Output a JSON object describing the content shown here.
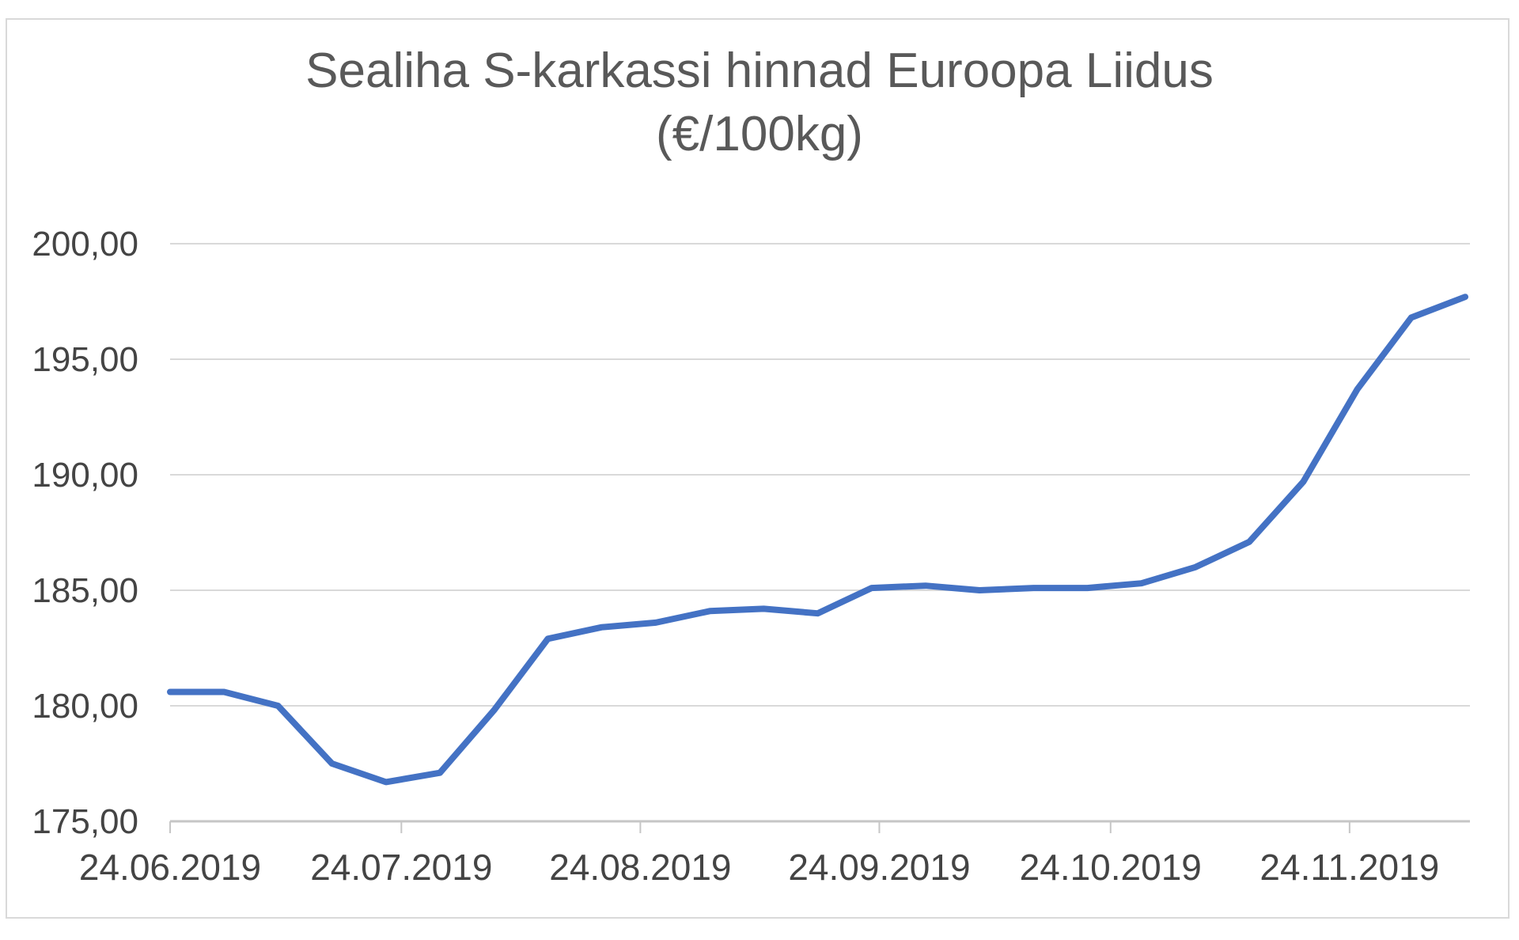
{
  "chart_data": {
    "type": "line",
    "title": "Sealiha S-karkassi hinnad Euroopa Liidus (€/100kg)",
    "title_line1": "Sealiha S-karkassi hinnad Euroopa Liidus",
    "title_line2": "(€/100kg)",
    "xlabel": "",
    "ylabel": "",
    "legend": "none",
    "grid": true,
    "ylim": [
      175,
      200
    ],
    "x_axis_span_days": 168,
    "x": [
      "24.06.2019",
      "01.07.2019",
      "08.07.2019",
      "15.07.2019",
      "22.07.2019",
      "29.07.2019",
      "05.08.2019",
      "12.08.2019",
      "19.08.2019",
      "26.08.2019",
      "02.09.2019",
      "09.09.2019",
      "16.09.2019",
      "23.09.2019",
      "30.09.2019",
      "07.10.2019",
      "14.10.2019",
      "21.10.2019",
      "28.10.2019",
      "04.11.2019",
      "11.11.2019",
      "18.11.2019",
      "25.11.2019",
      "02.12.2019",
      "09.12.2019"
    ],
    "x_day_offsets": [
      0,
      7,
      14,
      21,
      28,
      35,
      42,
      49,
      56,
      63,
      70,
      77,
      84,
      91,
      98,
      105,
      112,
      119,
      126,
      133,
      140,
      147,
      154,
      161,
      168
    ],
    "series": [
      {
        "name": "Sealiha S-karkassi hind (€/100kg)",
        "values": [
          180.6,
          180.6,
          180.0,
          177.5,
          176.7,
          177.1,
          179.8,
          182.9,
          183.4,
          183.6,
          184.1,
          184.2,
          184.0,
          185.1,
          185.2,
          185.0,
          185.1,
          185.1,
          185.3,
          186.0,
          187.1,
          189.7,
          193.7,
          196.8,
          197.7
        ]
      }
    ],
    "y_ticks": [
      {
        "value": 175,
        "label": "175,00"
      },
      {
        "value": 180,
        "label": "180,00"
      },
      {
        "value": 185,
        "label": "185,00"
      },
      {
        "value": 190,
        "label": "190,00"
      },
      {
        "value": 195,
        "label": "195,00"
      },
      {
        "value": 200,
        "label": "200,00"
      }
    ],
    "x_ticks": [
      {
        "label": "24.06.2019",
        "day": 0
      },
      {
        "label": "24.07.2019",
        "day": 30
      },
      {
        "label": "24.08.2019",
        "day": 61
      },
      {
        "label": "24.09.2019",
        "day": 92
      },
      {
        "label": "24.10.2019",
        "day": 122
      },
      {
        "label": "24.11.2019",
        "day": 153
      }
    ],
    "colors": {
      "series_line": "#4472C4",
      "gridline": "#D9D9D9",
      "axis_line": "#C6C6C6",
      "tick_mark": "#C6C6C6",
      "axis_label": "#444444",
      "title": "#595959",
      "chart_border": "#D9D9D9",
      "background": "#FFFFFF"
    }
  }
}
